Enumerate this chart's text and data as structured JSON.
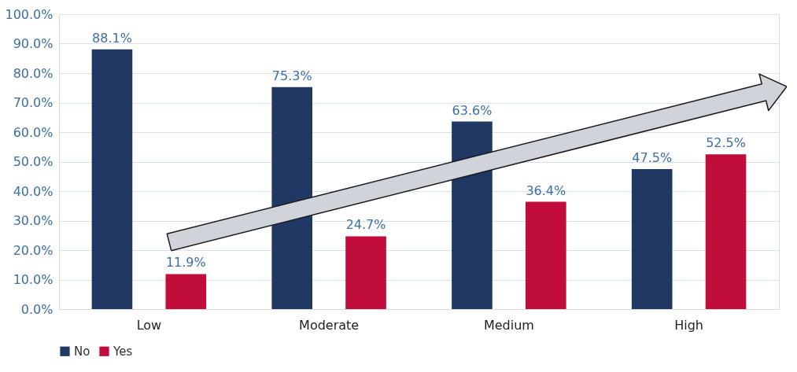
{
  "chart_data": {
    "type": "bar",
    "categories": [
      "Low",
      "Moderate",
      "Medium",
      "High"
    ],
    "series": [
      {
        "name": "No",
        "color": "#1f3864",
        "values": [
          88.1,
          75.3,
          63.6,
          47.5
        ],
        "value_labels": [
          "88.1%",
          "75.3%",
          "63.6%",
          "47.5%"
        ]
      },
      {
        "name": "Yes",
        "color": "#c00d3a",
        "values": [
          11.9,
          24.7,
          36.4,
          52.5
        ],
        "value_labels": [
          "11.9%",
          "24.7%",
          "36.4%",
          "52.5%"
        ]
      }
    ],
    "ylim": [
      0,
      100
    ],
    "yticks": [
      {
        "value": 0,
        "label": "0.0%"
      },
      {
        "value": 10,
        "label": "10.0%"
      },
      {
        "value": 20,
        "label": "20.0%"
      },
      {
        "value": 30,
        "label": "30.0%"
      },
      {
        "value": 40,
        "label": "40.0%"
      },
      {
        "value": 50,
        "label": "50.0%"
      },
      {
        "value": 60,
        "label": "60.0%"
      },
      {
        "value": 70,
        "label": "70.0%"
      },
      {
        "value": 80,
        "label": "80.0%"
      },
      {
        "value": 90,
        "label": "90.0%"
      },
      {
        "value": 100,
        "label": "100.0%"
      }
    ],
    "grid": "y",
    "legend": "bottom"
  }
}
